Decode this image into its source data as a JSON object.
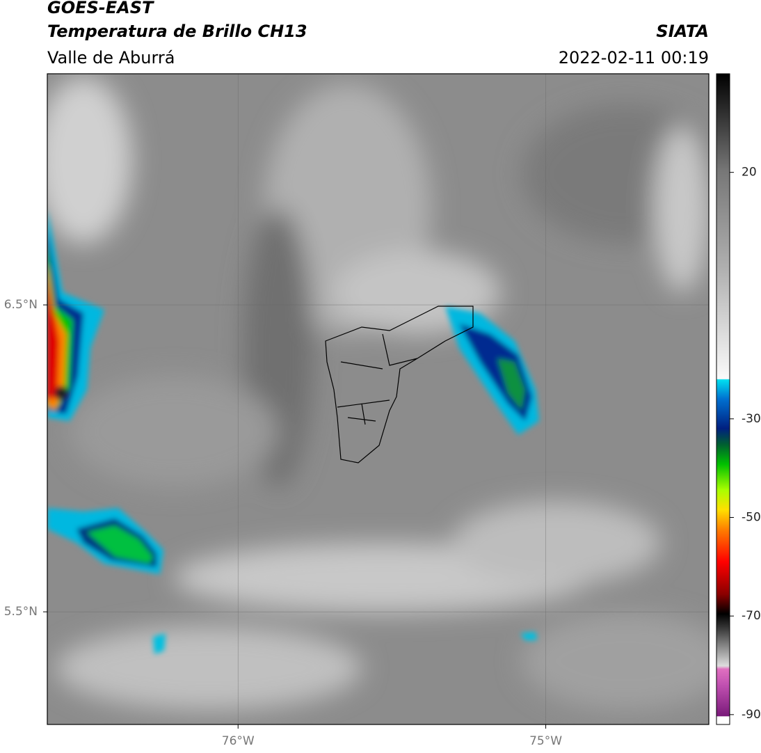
{
  "header": {
    "title": "GOES-EAST",
    "subtitle": "Temperatura de Brillo CH13",
    "region": "Valle de Aburrá",
    "source": "SIATA",
    "timestamp": "2022-02-11 00:19"
  },
  "map": {
    "xlim": [
      -76.62,
      -74.47
    ],
    "ylim": [
      5.133,
      7.253
    ],
    "xticks": [
      {
        "value": -76,
        "label": "76°W"
      },
      {
        "value": -75,
        "label": "75°W"
      }
    ],
    "yticks": [
      {
        "value": 6.5,
        "label": "6.5°N"
      },
      {
        "value": 5.5,
        "label": "5.5°N"
      }
    ]
  },
  "colorbar": {
    "lim": [
      -92,
      40
    ],
    "ticks": [
      20,
      -30,
      -50,
      -70,
      -90
    ]
  }
}
